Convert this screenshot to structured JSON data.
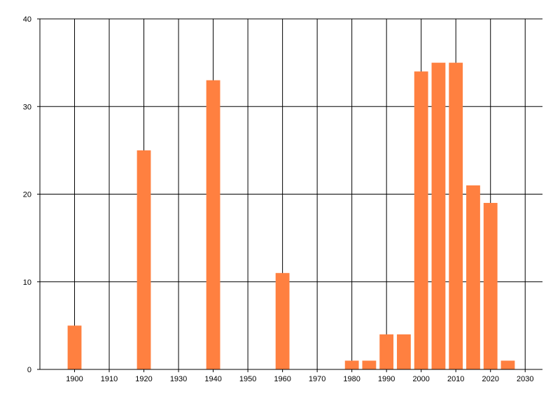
{
  "chart_data": {
    "type": "bar",
    "title": "",
    "xlabel": "",
    "ylabel": "",
    "x": [
      1900,
      1920,
      1940,
      1960,
      1980,
      1985,
      1990,
      1995,
      2000,
      2005,
      2010,
      2015,
      2020,
      2025
    ],
    "values": [
      5,
      25,
      33,
      11,
      1,
      1,
      4,
      4,
      34,
      35,
      35,
      21,
      19,
      1
    ],
    "xlim": [
      1890,
      2035
    ],
    "ylim": [
      0,
      40
    ],
    "x_ticks": [
      1900,
      1910,
      1920,
      1930,
      1940,
      1950,
      1960,
      1970,
      1980,
      1990,
      2000,
      2010,
      2020,
      2030
    ],
    "y_ticks": [
      0,
      10,
      20,
      30,
      40
    ],
    "bar_width_years": 4,
    "grid": true,
    "bar_color": "#FF8040"
  }
}
